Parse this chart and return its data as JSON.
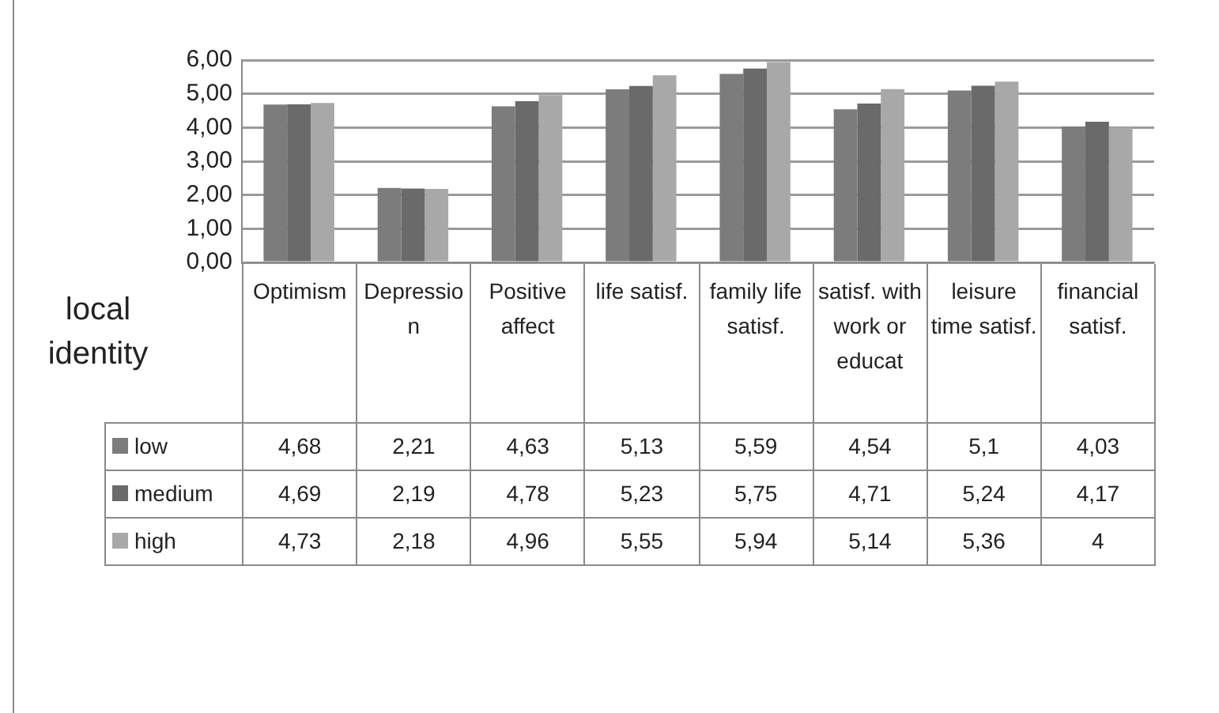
{
  "chart_data": {
    "type": "bar",
    "legend_title": "local identity",
    "categories": [
      "Optimism",
      "Depression",
      "Positive affect",
      "life satisf.",
      "family life satisf.",
      "satisf. with work or educat",
      "leisure time satisf.",
      "financial satisf."
    ],
    "series": [
      {
        "name": "low",
        "color": "#7c7c7c",
        "values": [
          4.68,
          2.21,
          4.63,
          5.13,
          5.59,
          4.54,
          5.1,
          4.03
        ],
        "value_labels": [
          "4,68",
          "2,21",
          "4,63",
          "5,13",
          "5,59",
          "4,54",
          "5,1",
          "4,03"
        ]
      },
      {
        "name": "medium",
        "color": "#6a6a6a",
        "values": [
          4.69,
          2.19,
          4.78,
          5.23,
          5.75,
          4.71,
          5.24,
          4.17
        ],
        "value_labels": [
          "4,69",
          "2,19",
          "4,78",
          "5,23",
          "5,75",
          "4,71",
          "5,24",
          "4,17"
        ]
      },
      {
        "name": "high",
        "color": "#a8a8a8",
        "values": [
          4.73,
          2.18,
          4.96,
          5.55,
          5.94,
          5.14,
          5.36,
          4
        ],
        "value_labels": [
          "4,73",
          "2,18",
          "4,96",
          "5,55",
          "5,94",
          "5,14",
          "5,36",
          "4"
        ]
      }
    ],
    "ylim": [
      0,
      6
    ],
    "yticks": [
      {
        "value": 0,
        "label": "0,00"
      },
      {
        "value": 1,
        "label": "1,00"
      },
      {
        "value": 2,
        "label": "2,00"
      },
      {
        "value": 3,
        "label": "3,00"
      },
      {
        "value": 4,
        "label": "4,00"
      },
      {
        "value": 5,
        "label": "5,00"
      },
      {
        "value": 6,
        "label": "6,00"
      }
    ],
    "grid": "y",
    "legend": "bottom"
  }
}
